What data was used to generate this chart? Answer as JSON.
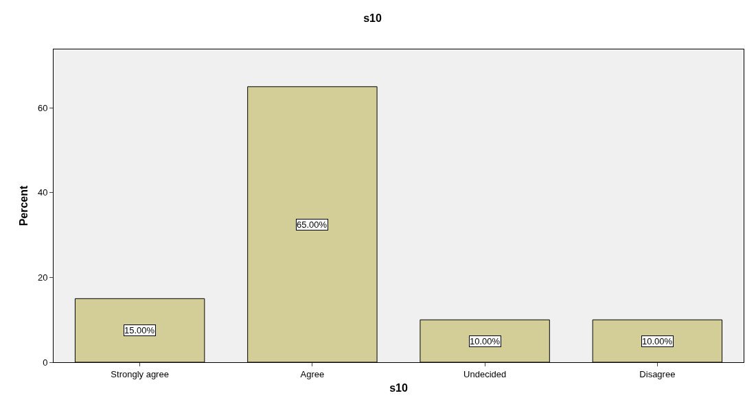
{
  "chart_data": {
    "type": "bar",
    "title": "s10",
    "xlabel": "s10",
    "ylabel": "Percent",
    "categories": [
      "Strongly agree",
      "Agree",
      "Undecided",
      "Disagree"
    ],
    "values": [
      15,
      65,
      10,
      10
    ],
    "value_labels": [
      "15.00%",
      "65.00%",
      "10.00%",
      "10.00%"
    ],
    "color": "#d3ce98",
    "ylim": [
      0,
      73.8
    ],
    "yticks": [
      0,
      20,
      40,
      60
    ],
    "grid": false,
    "legend": false
  }
}
